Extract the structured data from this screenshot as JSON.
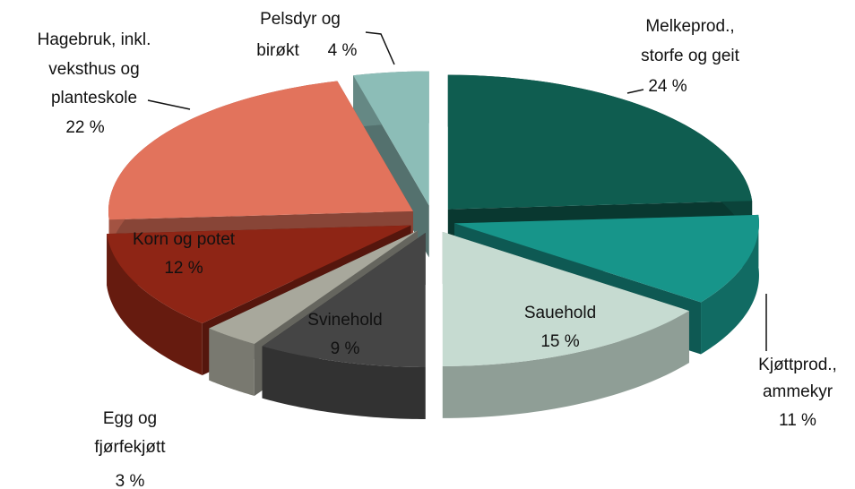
{
  "chart_data": {
    "type": "pie3d",
    "categories": [
      [
        "Melkeprod.,",
        "storfe og geit"
      ],
      [
        "Kjøttprod.,",
        "ammekyr"
      ],
      [
        "Sauehold"
      ],
      [
        "Svinehold"
      ],
      [
        "Egg og",
        "fjørfekjøtt"
      ],
      [
        "Korn og potet"
      ],
      [
        "Hagebruk, inkl.",
        "veksthus og",
        "planteskole"
      ],
      [
        "Pelsdyr og",
        "birøkt"
      ]
    ],
    "values": [
      24,
      11,
      15,
      9,
      3,
      12,
      22,
      4
    ],
    "value_labels": [
      "24 %",
      "11 %",
      "15 %",
      "9 %",
      "3 %",
      "12 %",
      "22 %",
      "4 %"
    ],
    "colors": [
      "#0f5d50",
      "#17958a",
      "#c6dbd1",
      "#454545",
      "#a8a89c",
      "#8e2515",
      "#e2735c",
      "#8cbdb7"
    ]
  }
}
